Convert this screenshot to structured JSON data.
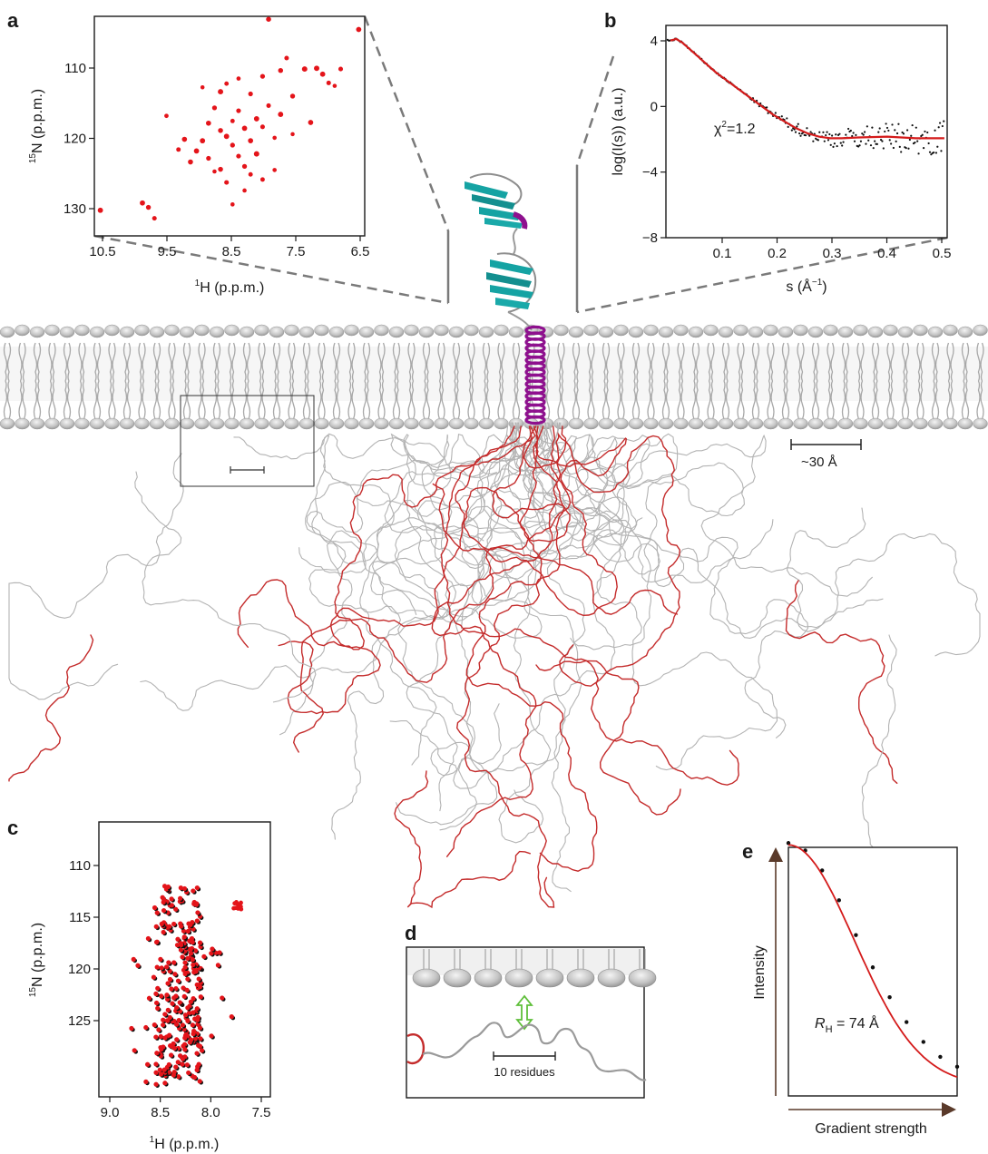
{
  "panel_letters": {
    "a": "a",
    "b": "b",
    "c": "c",
    "d": "d",
    "e": "e"
  },
  "colors": {
    "peak_red": "#e4141a",
    "peak_black": "#111111",
    "fit_red": "#d41b1b",
    "chain_grey": "#b3b3b3",
    "chain_red": "#c42b2b",
    "helix_magenta": "#8e108e",
    "sheet_teal": "#15a3a3",
    "arrow_green": "#5fbf3a",
    "lipid_head": "#b8b8b8",
    "axis_arrow": "#5a3a2a"
  },
  "annotations": {
    "scale_membrane": "~30 Å",
    "scale_residues": "10 residues",
    "chi2": "χ",
    "chi2_exp": "2",
    "chi2_val": "=1.2",
    "rh_symbol": "R",
    "rh_sub": "H",
    "rh_value": " = 74 Å"
  },
  "chart_data": [
    {
      "panel": "a",
      "type": "scatter",
      "xlabel_sup": "1",
      "xlabel": "H (p.p.m.)",
      "ylabel_sup": "15",
      "ylabel": "N (p.p.m.)",
      "xlim": [
        10.6,
        6.1
      ],
      "ylim": [
        104,
        134
      ],
      "xticks": [
        "10.5",
        "9.5",
        "8.5",
        "7.5",
        "6.5"
      ],
      "yticks": [
        "110",
        "120",
        "130"
      ],
      "points": [
        [
          10.5,
          130.5
        ],
        [
          9.8,
          129.5
        ],
        [
          9.7,
          130.1
        ],
        [
          9.6,
          131.6
        ],
        [
          9.4,
          117.6
        ],
        [
          9.2,
          122.2
        ],
        [
          9.1,
          120.8
        ],
        [
          9.0,
          123.9
        ],
        [
          8.9,
          122.4
        ],
        [
          8.8,
          113.7
        ],
        [
          8.8,
          121.0
        ],
        [
          8.7,
          118.6
        ],
        [
          8.7,
          123.4
        ],
        [
          8.6,
          116.5
        ],
        [
          8.6,
          125.2
        ],
        [
          8.5,
          114.3
        ],
        [
          8.5,
          119.6
        ],
        [
          8.5,
          124.9
        ],
        [
          8.4,
          113.2
        ],
        [
          8.4,
          120.4
        ],
        [
          8.4,
          126.7
        ],
        [
          8.3,
          118.3
        ],
        [
          8.3,
          121.6
        ],
        [
          8.3,
          129.7
        ],
        [
          8.2,
          112.5
        ],
        [
          8.2,
          116.9
        ],
        [
          8.2,
          123.1
        ],
        [
          8.1,
          119.3
        ],
        [
          8.1,
          124.5
        ],
        [
          8.1,
          127.8
        ],
        [
          8.0,
          114.6
        ],
        [
          8.0,
          121.0
        ],
        [
          8.0,
          125.6
        ],
        [
          7.9,
          118.0
        ],
        [
          7.9,
          122.8
        ],
        [
          7.8,
          112.2
        ],
        [
          7.8,
          119.1
        ],
        [
          7.8,
          126.3
        ],
        [
          7.7,
          104.4
        ],
        [
          7.7,
          116.2
        ],
        [
          7.6,
          120.6
        ],
        [
          7.6,
          125.0
        ],
        [
          7.5,
          111.4
        ],
        [
          7.5,
          117.4
        ],
        [
          7.4,
          109.7
        ],
        [
          7.3,
          114.9
        ],
        [
          7.3,
          120.1
        ],
        [
          7.1,
          111.2
        ],
        [
          7.0,
          118.5
        ],
        [
          6.9,
          111.1
        ],
        [
          6.8,
          111.9
        ],
        [
          6.7,
          113.1
        ],
        [
          6.6,
          113.5
        ],
        [
          6.5,
          111.2
        ],
        [
          6.2,
          105.8
        ]
      ]
    },
    {
      "panel": "b",
      "type": "line",
      "xlabel": "s (Å",
      "xlabel_sup": "−1",
      "xlabel_end": ")",
      "ylabel": "log(I(s)) (a.u.)",
      "xlim": [
        0.012,
        0.505
      ],
      "ylim": [
        -8,
        4.6
      ],
      "xticks": [
        "0.1",
        "0.2",
        "0.3",
        "0.4",
        "0.5"
      ],
      "yticks": [
        "4",
        "0",
        "−4",
        "−8"
      ],
      "fit": {
        "x": [
          0.02,
          0.03,
          0.04,
          0.06,
          0.08,
          0.1,
          0.12,
          0.14,
          0.16,
          0.18,
          0.2,
          0.22,
          0.24,
          0.26,
          0.28,
          0.3,
          0.32,
          0.35,
          0.4,
          0.45,
          0.5
        ],
        "y": [
          3.7,
          3.8,
          3.6,
          3.0,
          2.4,
          1.8,
          1.3,
          0.8,
          0.3,
          -0.2,
          -0.7,
          -1.1,
          -1.5,
          -1.8,
          -2.0,
          -2.1,
          -2.1,
          -2.05,
          -2.0,
          -2.1,
          -2.1
        ]
      }
    },
    {
      "panel": "c",
      "type": "scatter",
      "xlabel_sup": "1",
      "xlabel": "H (p.p.m.)",
      "ylabel_sup": "15",
      "ylabel": "N (p.p.m.)",
      "xlim": [
        9.2,
        7.35
      ],
      "ylim": [
        106.6,
        128.6
      ],
      "xticks": [
        "9.0",
        "8.5",
        "8.0",
        "7.5"
      ],
      "yticks": [
        "110",
        "115",
        "120",
        "125"
      ]
    },
    {
      "panel": "e",
      "type": "line",
      "xlabel": "Gradient strength",
      "ylabel": "Intensity",
      "fit": {
        "x": [
          0,
          0.1,
          0.2,
          0.3,
          0.4,
          0.5,
          0.6,
          0.7,
          0.8,
          0.9,
          1.0
        ],
        "y": [
          0.97,
          0.94,
          0.86,
          0.74,
          0.6,
          0.47,
          0.35,
          0.25,
          0.17,
          0.11,
          0.07
        ]
      }
    }
  ]
}
